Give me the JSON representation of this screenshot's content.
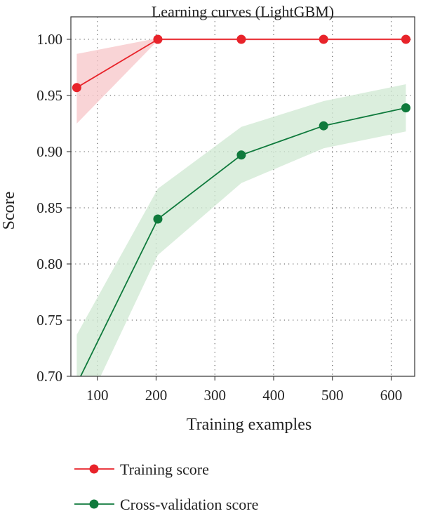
{
  "chart_data": {
    "type": "line",
    "title": "Learning curves (LightGBM)",
    "xlabel": "Training examples",
    "ylabel": "Score",
    "xlim": [
      55,
      640
    ],
    "ylim": [
      0.7,
      1.02
    ],
    "xticks": [
      100,
      200,
      300,
      400,
      500,
      600
    ],
    "xtick_labels": [
      "100",
      "200",
      "300",
      "400",
      "500",
      "600"
    ],
    "yticks": [
      0.7,
      0.75,
      0.8,
      0.85,
      0.9,
      0.95,
      1.0
    ],
    "ytick_labels": [
      "0.70",
      "0.75",
      "0.80",
      "0.85",
      "0.90",
      "0.95",
      "1.00"
    ],
    "grid": true,
    "legend_position": "bottom",
    "series": [
      {
        "name": "Training score",
        "color": "#e8232a",
        "band_color": "#f7c6c8",
        "x": [
          65,
          203,
          345,
          485,
          625
        ],
        "y": [
          0.957,
          1.0,
          1.0,
          1.0,
          1.0
        ],
        "y_lower": [
          0.925,
          0.999,
          0.999,
          0.999,
          0.999
        ],
        "y_upper": [
          0.987,
          1.001,
          1.001,
          1.001,
          1.001
        ]
      },
      {
        "name": "Cross-validation score",
        "color": "#0f7a3c",
        "band_color": "#cfe8d2",
        "x": [
          65,
          203,
          345,
          485,
          625
        ],
        "y": [
          0.693,
          0.84,
          0.897,
          0.923,
          0.939
        ],
        "y_lower": [
          0.655,
          0.808,
          0.872,
          0.903,
          0.918
        ],
        "y_upper": [
          0.737,
          0.867,
          0.922,
          0.945,
          0.96
        ]
      }
    ]
  }
}
